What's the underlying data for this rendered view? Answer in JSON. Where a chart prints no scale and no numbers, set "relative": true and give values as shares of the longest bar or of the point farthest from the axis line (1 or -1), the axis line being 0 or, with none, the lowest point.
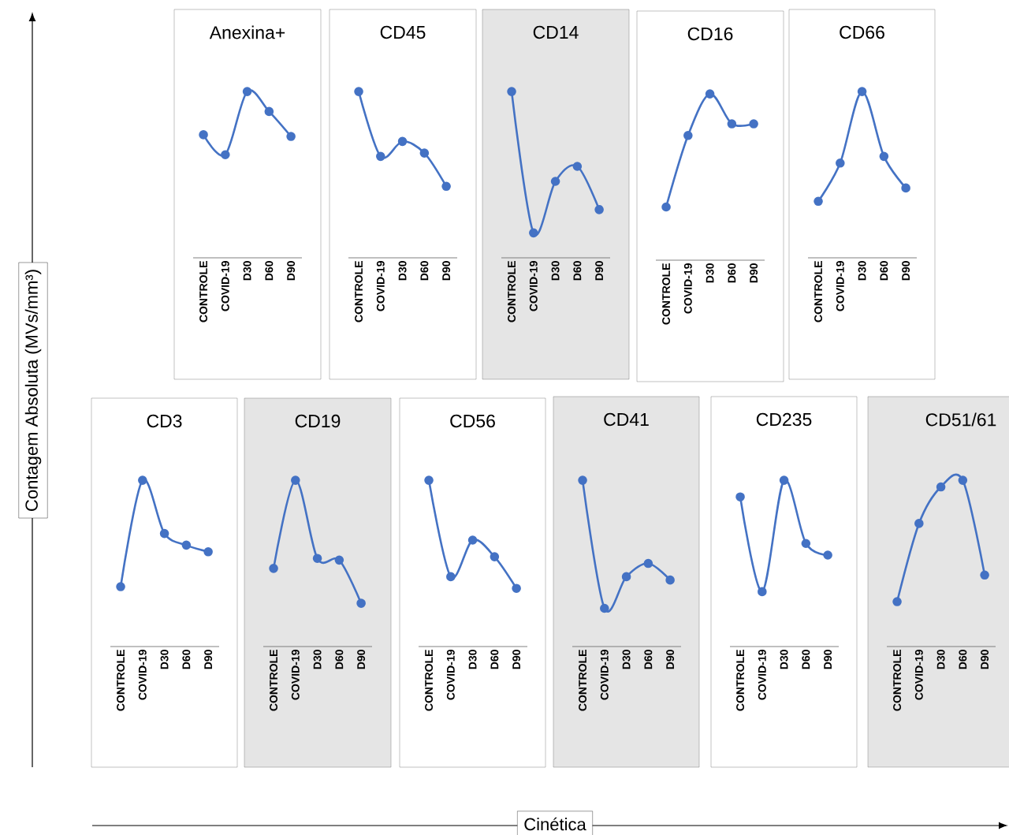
{
  "chart_data": [
    {
      "type": "line",
      "title": "Anexina+",
      "categories": [
        "CONTROLE",
        "COVID-19",
        "D30",
        "D60",
        "D90"
      ],
      "values": [
        0.74,
        0.62,
        1,
        0.88,
        0.73
      ],
      "relative": true,
      "color": "#4472c4",
      "marker": "circle"
    },
    {
      "type": "line",
      "title": "CD45",
      "categories": [
        "CONTROLE",
        "COVID-19",
        "D30",
        "D60",
        "D90"
      ],
      "values": [
        1,
        0.61,
        0.7,
        0.63,
        0.43
      ],
      "relative": true,
      "color": "#4472c4",
      "marker": "circle"
    },
    {
      "type": "line",
      "title": "CD14",
      "categories": [
        "CONTROLE",
        "COVID-19",
        "D30",
        "D60",
        "D90"
      ],
      "values": [
        1,
        0.15,
        0.46,
        0.55,
        0.29
      ],
      "relative": true,
      "color": "#4472c4",
      "marker": "circle"
    },
    {
      "type": "line",
      "title": "CD16",
      "categories": [
        "CONTROLE",
        "COVID-19",
        "D30",
        "D60",
        "D90"
      ],
      "values": [
        0.32,
        0.75,
        1,
        0.82,
        0.82
      ],
      "relative": true,
      "color": "#4472c4",
      "marker": "circle"
    },
    {
      "type": "line",
      "title": "CD66",
      "categories": [
        "CONTROLE",
        "COVID-19",
        "D30",
        "D60",
        "D90"
      ],
      "values": [
        0.34,
        0.57,
        1,
        0.61,
        0.42
      ],
      "relative": true,
      "color": "#4472c4",
      "marker": "circle"
    },
    {
      "type": "line",
      "title": "CD3",
      "categories": [
        "CONTROLE",
        "COVID-19",
        "D30",
        "D60",
        "D90"
      ],
      "values": [
        0.36,
        1,
        0.68,
        0.61,
        0.57
      ],
      "relative": true,
      "color": "#4472c4",
      "marker": "circle"
    },
    {
      "type": "line",
      "title": "CD19",
      "categories": [
        "CONTROLE",
        "COVID-19",
        "D30",
        "D60",
        "D90"
      ],
      "values": [
        0.47,
        1,
        0.53,
        0.52,
        0.26
      ],
      "relative": true,
      "color": "#4472c4",
      "marker": "circle"
    },
    {
      "type": "line",
      "title": "CD56",
      "categories": [
        "CONTROLE",
        "COVID-19",
        "D30",
        "D60",
        "D90"
      ],
      "values": [
        1,
        0.42,
        0.64,
        0.54,
        0.35
      ],
      "relative": true,
      "color": "#4472c4",
      "marker": "circle"
    },
    {
      "type": "line",
      "title": "CD41",
      "categories": [
        "CONTROLE",
        "COVID-19",
        "D30",
        "D60",
        "D90"
      ],
      "values": [
        1,
        0.23,
        0.42,
        0.5,
        0.4
      ],
      "relative": true,
      "color": "#4472c4",
      "marker": "circle"
    },
    {
      "type": "line",
      "title": "CD235",
      "categories": [
        "CONTROLE",
        "COVID-19",
        "D30",
        "D60",
        "D90"
      ],
      "values": [
        0.9,
        0.33,
        1,
        0.62,
        0.55
      ],
      "relative": true,
      "color": "#4472c4",
      "marker": "circle"
    },
    {
      "type": "line",
      "title": "CD51/61",
      "categories": [
        "CONTROLE",
        "COVID-19",
        "D30",
        "D60",
        "D90"
      ],
      "values": [
        0.27,
        0.74,
        0.96,
        1,
        0.43
      ],
      "relative": true,
      "color": "#4472c4",
      "marker": "circle"
    },
    {
      "type": "other",
      "ylabel": "Contagem Absoluta (MVs/mm³)",
      "xlabel": "Cinética"
    }
  ]
}
